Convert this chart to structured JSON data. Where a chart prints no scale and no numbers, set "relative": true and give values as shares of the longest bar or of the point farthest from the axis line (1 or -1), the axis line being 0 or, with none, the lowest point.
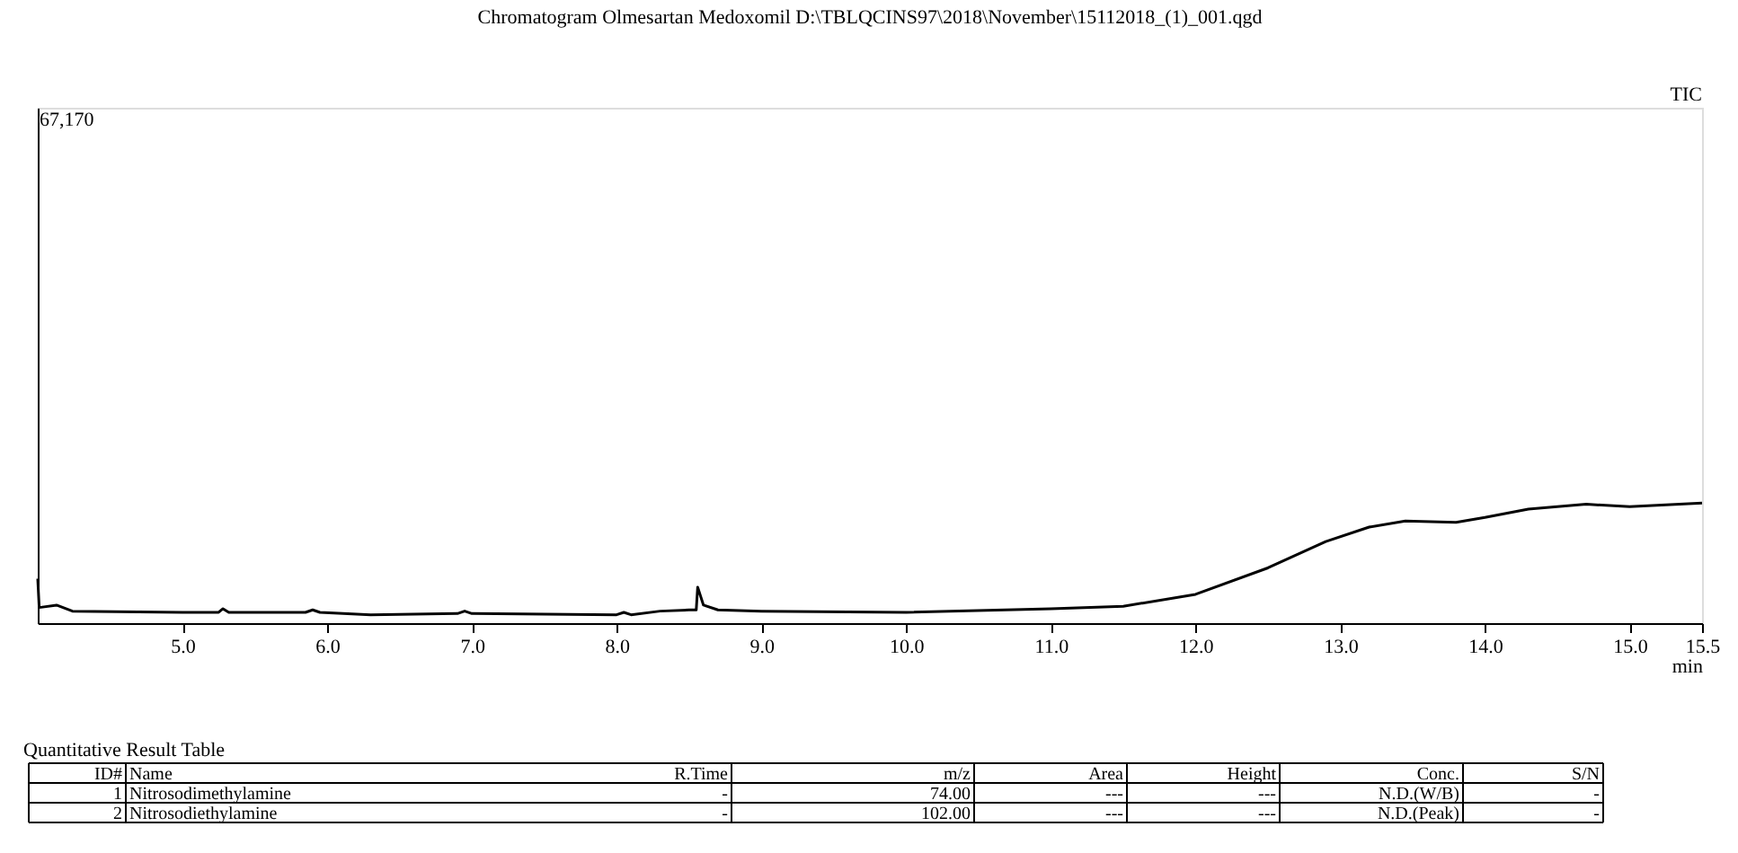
{
  "chart_data": {
    "type": "line",
    "title": "Chromatogram Olmesartan Medoxomil D:\\TBLQCINS97\\2018\\November\\15112018_(1)_001.qgd",
    "xlabel": "min",
    "relative": true,
    "x": [
      4.0,
      4.01,
      4.13,
      4.24,
      5.0,
      5.25,
      5.28,
      5.32,
      5.85,
      5.9,
      5.95,
      6.3,
      6.9,
      6.95,
      7.0,
      8.0,
      8.05,
      8.1,
      8.3,
      8.5,
      8.55,
      8.56,
      8.6,
      8.7,
      9.0,
      10.0,
      11.0,
      11.5,
      12.0,
      12.5,
      12.9,
      13.2,
      13.45,
      13.8,
      14.0,
      14.3,
      14.7,
      15.0,
      15.5
    ],
    "series": [
      {
        "color": "#000000",
        "values": [
          0.37,
          0.13,
          0.15,
          0.1,
          0.09,
          0.09,
          0.12,
          0.09,
          0.09,
          0.11,
          0.09,
          0.07,
          0.08,
          0.1,
          0.08,
          0.07,
          0.09,
          0.07,
          0.1,
          0.11,
          0.11,
          0.3,
          0.15,
          0.11,
          0.1,
          0.09,
          0.12,
          0.14,
          0.24,
          0.46,
          0.68,
          0.8,
          0.85,
          0.84,
          0.88,
          0.95,
          0.99,
          0.97,
          1.0
        ]
      }
    ],
    "xlim": [
      4.0,
      15.5
    ],
    "xticks": [
      {
        "value": 5.0,
        "label": "5.0"
      },
      {
        "value": 6.0,
        "label": "6.0"
      },
      {
        "value": 7.0,
        "label": "7.0"
      },
      {
        "value": 8.0,
        "label": "8.0"
      },
      {
        "value": 9.0,
        "label": "9.0"
      },
      {
        "value": 10.0,
        "label": "10.0"
      },
      {
        "value": 11.0,
        "label": "11.0"
      },
      {
        "value": 12.0,
        "label": "12.0"
      },
      {
        "value": 13.0,
        "label": "13.0"
      },
      {
        "value": 14.0,
        "label": "14.0"
      },
      {
        "value": 15.0,
        "label": "15.0"
      },
      {
        "value": 15.5,
        "label": "15.5"
      }
    ],
    "grid": false,
    "marker": "none",
    "line_style": "solid",
    "annotations": [
      "67,170",
      "TIC",
      "Quantitative Result Table",
      "ID#",
      "Name",
      "R.Time",
      "m/z",
      "Area",
      "Height",
      "Conc.",
      "S/N",
      "1",
      "Nitrosodimethylamine",
      "-",
      "74.00",
      "---",
      "---",
      "N.D.(W/B)",
      "-",
      "2",
      "Nitrosodiethylamine",
      "-",
      "102.00",
      "---",
      "---",
      "N.D.(Peak)",
      "-"
    ]
  }
}
